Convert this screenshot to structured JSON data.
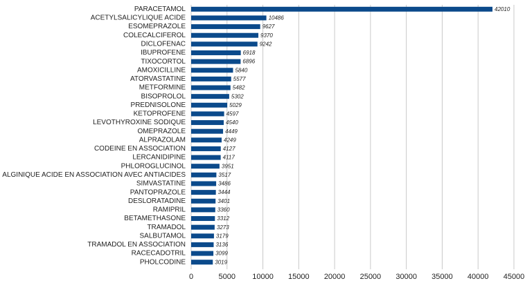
{
  "chart_data": {
    "type": "hbar",
    "categories": [
      "PARACETAMOL",
      "ACETYLSALICYLIQUE ACIDE",
      "ESOMEPRAZOLE",
      "COLECALCIFEROL",
      "DICLOFENAC",
      "IBUPROFENE",
      "TIXOCORTOL",
      "AMOXICILLINE",
      "ATORVASTATINE",
      "METFORMINE",
      "BISOPROLOL",
      "PREDNISOLONE",
      "KETOPROFENE",
      "LEVOTHYROXINE SODIQUE",
      "OMEPRAZOLE",
      "ALPRAZOLAM",
      "CODEINE EN ASSOCIATION",
      "LERCANIDIPINE",
      "PHLOROGLUCINOL",
      "ALGINIQUE ACIDE EN ASSOCIATION AVEC ANTIACIDES",
      "SIMVASTATINE",
      "PANTOPRAZOLE",
      "DESLORATADINE",
      "RAMIPRIL",
      "BETAMETHASONE",
      "TRAMADOL",
      "SALBUTAMOL",
      "TRAMADOL EN ASSOCIATION",
      "RACECADOTRIL",
      "PHOLCODINE"
    ],
    "values": [
      42010,
      10486,
      9627,
      9370,
      9242,
      6918,
      6896,
      5840,
      5577,
      5482,
      5302,
      5029,
      4597,
      4540,
      4449,
      4249,
      4127,
      4117,
      3951,
      3517,
      3486,
      3444,
      3401,
      3360,
      3312,
      3273,
      3179,
      3136,
      3099,
      3019
    ],
    "color": "#0b4a8b",
    "xlim": [
      0,
      45000
    ],
    "xticks": [
      0,
      5000,
      10000,
      15000,
      20000,
      25000,
      30000,
      35000,
      40000,
      45000
    ],
    "grid": true
  }
}
